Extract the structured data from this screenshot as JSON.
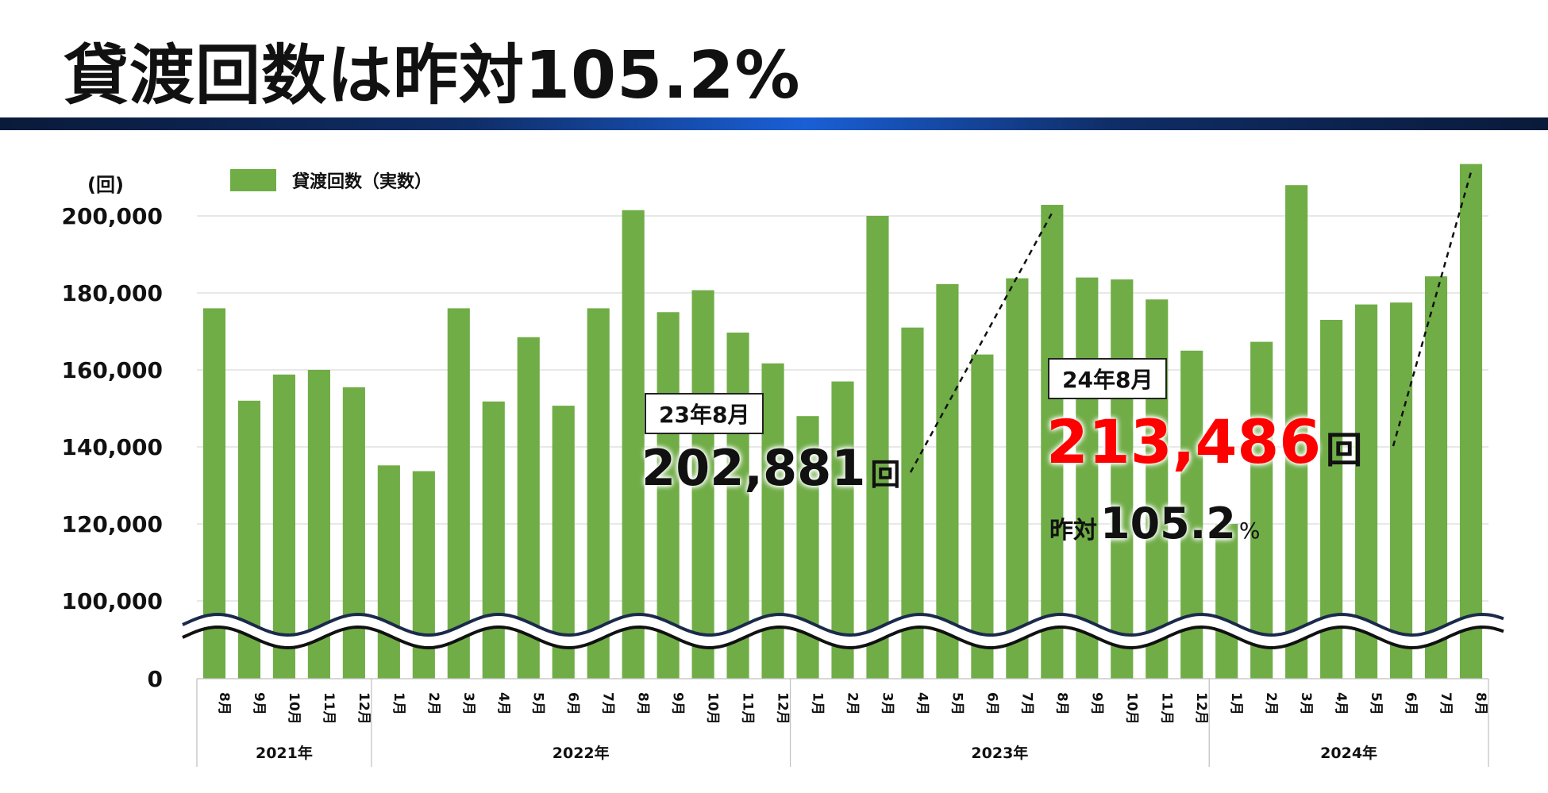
{
  "title": "貸渡回数は昨対105.2%",
  "chart_data": {
    "type": "bar",
    "ylabel": "(回)",
    "legend": "貸渡回数（実数）",
    "ylim": [
      0,
      200000
    ],
    "axis_break": "wavy break between 0 and 100,000",
    "y_ticks": [
      {
        "value": 200000,
        "label": "200,000"
      },
      {
        "value": 180000,
        "label": "180,000"
      },
      {
        "value": 160000,
        "label": "160,000"
      },
      {
        "value": 140000,
        "label": "140,000"
      },
      {
        "value": 120000,
        "label": "120,000"
      },
      {
        "value": 100000,
        "label": "100,000"
      },
      {
        "value": 0,
        "label": "0"
      }
    ],
    "categories": [
      "8月",
      "9月",
      "10月",
      "11月",
      "12月",
      "1月",
      "2月",
      "3月",
      "4月",
      "5月",
      "6月",
      "7月",
      "8月",
      "9月",
      "10月",
      "11月",
      "12月",
      "1月",
      "2月",
      "3月",
      "4月",
      "5月",
      "6月",
      "7月",
      "8月",
      "9月",
      "10月",
      "11月",
      "12月",
      "1月",
      "2月",
      "3月",
      "4月",
      "5月",
      "6月",
      "7月",
      "8月"
    ],
    "years": [
      {
        "label": "2021年",
        "start": 0,
        "count": 5
      },
      {
        "label": "2022年",
        "start": 5,
        "count": 12
      },
      {
        "label": "2023年",
        "start": 17,
        "count": 12
      },
      {
        "label": "2024年",
        "start": 29,
        "count": 8
      }
    ],
    "series": [
      {
        "name": "貸渡回数（実数）",
        "color": "#70ad47",
        "values": [
          176000,
          152000,
          158800,
          160000,
          155500,
          135200,
          133700,
          176000,
          151800,
          168500,
          150700,
          176000,
          201500,
          175000,
          180700,
          169700,
          161700,
          148000,
          157000,
          200000,
          171000,
          182300,
          164000,
          183800,
          202881,
          184000,
          183500,
          178300,
          165000,
          120000,
          167300,
          208000,
          173000,
          177000,
          177500,
          184300,
          213486
        ]
      }
    ]
  },
  "annotations": {
    "prev": {
      "label": "23年8月",
      "value": "202,881",
      "unit": "回"
    },
    "curr": {
      "label": "24年8月",
      "value": "213,486",
      "unit": "回",
      "yoy_prefix": "昨対",
      "yoy_value": "105.2",
      "yoy_unit": "%"
    },
    "colors": {
      "highlight": "#ff0000",
      "bar": "#70ad47"
    }
  }
}
